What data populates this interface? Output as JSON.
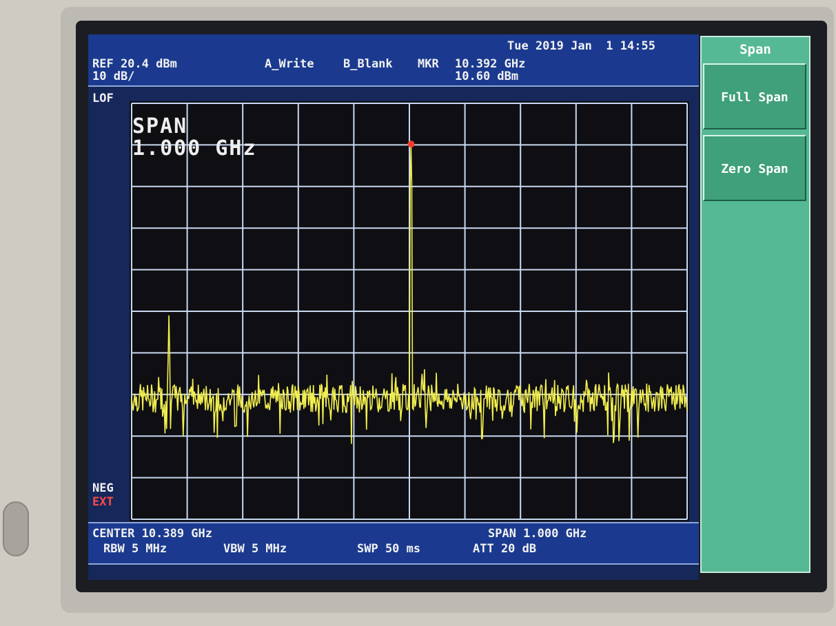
{
  "header": {
    "datetime": "Tue 2019 Jan  1 14:55",
    "ref_level": "REF 20.4 dBm",
    "scale": "10 dB/",
    "trace_a": "A_Write",
    "trace_b": "B_Blank",
    "marker_label": "MKR",
    "marker_freq": "10.392 GHz",
    "marker_level": "10.60 dBm",
    "lof": "LOF"
  },
  "side": {
    "detector": "NEG",
    "trigger": "EXT"
  },
  "plot": {
    "overlay_line1": "SPAN",
    "overlay_line2": "1.000 GHz"
  },
  "footer": {
    "center": "CENTER 10.389 GHz",
    "span": "SPAN 1.000 GHz",
    "rbw": "RBW 5 MHz",
    "vbw": "VBW 5 MHz",
    "sweep": "SWP 50 ms",
    "attenuation": "ATT 20 dB"
  },
  "softkeys": {
    "title": "Span",
    "items": [
      {
        "label": "Full Span"
      },
      {
        "label": "Zero Span"
      }
    ]
  },
  "colors": {
    "trace": "#f2ee4f",
    "marker": "#ff3b2f",
    "graticule": "#c9d9f2",
    "screen_bg": "#0f0f13",
    "status_bar": "#1b3a8f",
    "softkey_panel": "#56b995"
  },
  "chart_data": {
    "type": "line",
    "xlim": [
      9.889,
      10.889
    ],
    "ylim": [
      -79.6,
      20.4
    ],
    "xunit": "GHz",
    "yunit": "dBm",
    "noise_floor": -50.5,
    "peaks": [
      {
        "freq": 9.956,
        "level": -30.6
      },
      {
        "freq": 10.392,
        "level": 10.6
      }
    ],
    "marker": {
      "freq": 10.392,
      "level": 10.6
    },
    "grid": true,
    "grid_divisions": [
      10,
      10
    ]
  }
}
